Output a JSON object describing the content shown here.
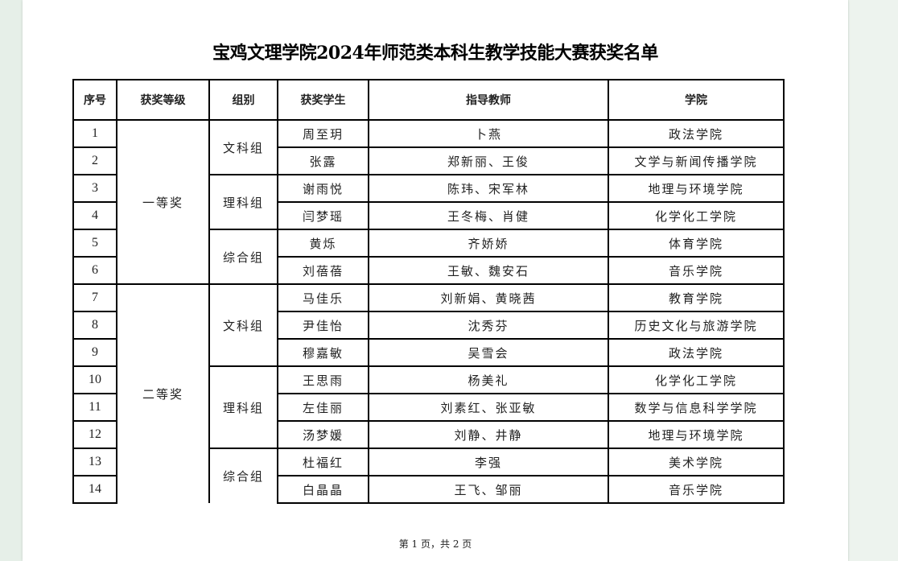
{
  "title": "宝鸡文理学院2024年师范类本科生教学技能大赛获奖名单",
  "headers": [
    "序号",
    "获奖等级",
    "组别",
    "获奖学生",
    "指导教师",
    "学院"
  ],
  "levels": [
    "一等奖",
    "二等奖"
  ],
  "groups": [
    "文科组",
    "理科组",
    "综合组",
    "文科组",
    "理科组",
    "综合组"
  ],
  "rows": [
    {
      "no": "1",
      "student": "周至玥",
      "teacher": "卜燕",
      "college": "政法学院"
    },
    {
      "no": "2",
      "student": "张露",
      "teacher": "郑新丽、王俊",
      "college": "文学与新闻传播学院"
    },
    {
      "no": "3",
      "student": "谢雨悦",
      "teacher": "陈玮、宋军林",
      "college": "地理与环境学院"
    },
    {
      "no": "4",
      "student": "闫梦瑶",
      "teacher": "王冬梅、肖健",
      "college": "化学化工学院"
    },
    {
      "no": "5",
      "student": "黄烁",
      "teacher": "齐娇娇",
      "college": "体育学院"
    },
    {
      "no": "6",
      "student": "刘蓓蓓",
      "teacher": "王敏、魏安石",
      "college": "音乐学院"
    },
    {
      "no": "7",
      "student": "马佳乐",
      "teacher": "刘新娟、黄晓茜",
      "college": "教育学院"
    },
    {
      "no": "8",
      "student": "尹佳怡",
      "teacher": "沈秀芬",
      "college": "历史文化与旅游学院"
    },
    {
      "no": "9",
      "student": "穆嘉敏",
      "teacher": "吴雪会",
      "college": "政法学院"
    },
    {
      "no": "10",
      "student": "王思雨",
      "teacher": "杨美礼",
      "college": "化学化工学院"
    },
    {
      "no": "11",
      "student": "左佳丽",
      "teacher": "刘素红、张亚敏",
      "college": "数学与信息科学学院"
    },
    {
      "no": "12",
      "student": "汤梦媛",
      "teacher": "刘静、井静",
      "college": "地理与环境学院"
    },
    {
      "no": "13",
      "student": "杜福红",
      "teacher": "李强",
      "college": "美术学院"
    },
    {
      "no": "14",
      "student": "白晶晶",
      "teacher": "王飞、邹丽",
      "college": "音乐学院"
    }
  ],
  "footer": "第 1 页，共 2 页"
}
